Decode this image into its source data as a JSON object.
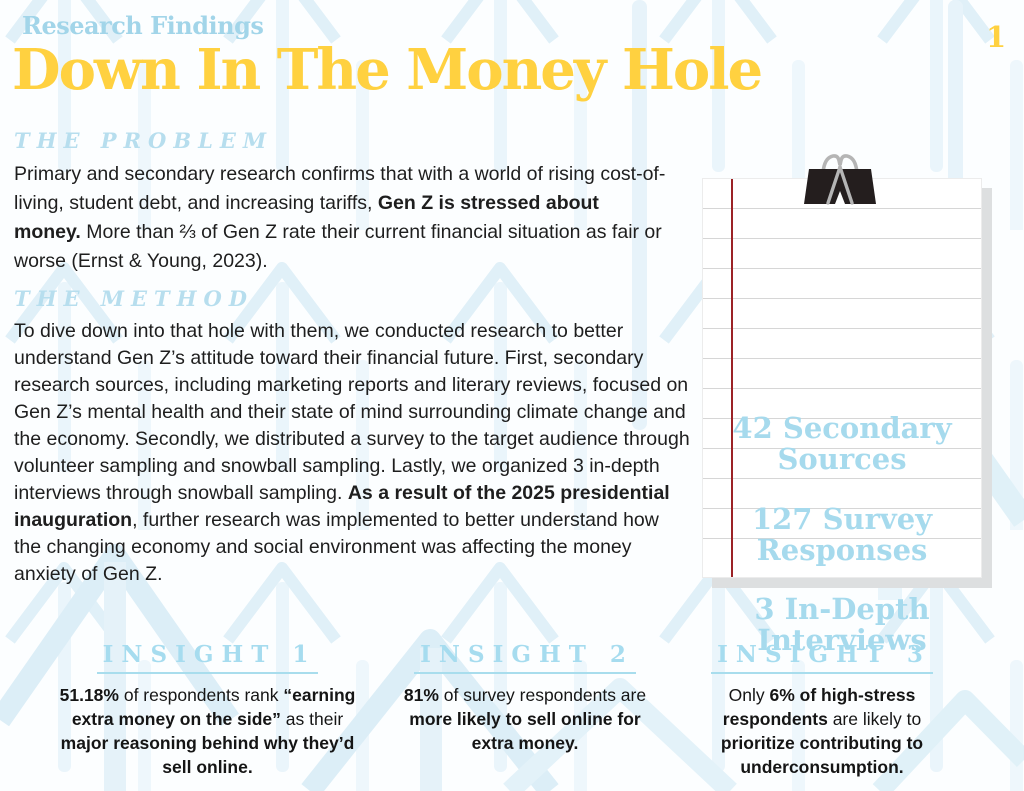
{
  "header": {
    "eyebrow": "Research Findings",
    "title": "Down In The Money Hole",
    "page_number": "1"
  },
  "colors": {
    "title_yellow": "#FFD140",
    "accent_light_blue": "#A6DBEE",
    "body_text": "#1E1E1E",
    "notepad_margin_red": "#9B2226",
    "notepad_rule_gray": "#D6D6D6",
    "background": "#FCFEFF"
  },
  "icons": {
    "binder_clip": "binder-clip-icon",
    "background_pattern": "upward-arrow-pattern"
  },
  "sections": {
    "problem": {
      "heading": "THE PROBLEM",
      "body": [
        {
          "t": "Primary and secondary research confirms that with a world of rising cost-of-living, student debt, and increasing tariffs, ",
          "b": false
        },
        {
          "t": "Gen Z is stressed about money.",
          "b": true
        },
        {
          "t": " More than ⅔ of Gen Z rate their current financial situation as fair or worse (Ernst & Young, 2023).",
          "b": false
        }
      ]
    },
    "method": {
      "heading": "THE METHOD",
      "body": [
        {
          "t": "To dive down into that hole with them, we conducted research to better understand Gen Z’s attitude toward their financial future. First, secondary research sources, including marketing reports and literary reviews, focused on Gen Z’s mental health and their state of mind surrounding climate change and the economy. Secondly, we distributed a survey to the target audience through volunteer sampling and snowball sampling. Lastly, we organized 3 in-depth interviews through snowball sampling. ",
          "b": false
        },
        {
          "t": "As a result of the 2025 presidential inauguration",
          "b": true
        },
        {
          "t": ", further research was implemented to better understand how the changing economy and social environment was affecting the money anxiety of Gen Z.",
          "b": false
        }
      ]
    }
  },
  "notepad": {
    "stats": [
      {
        "label": "42 Secondary\nSources"
      },
      {
        "label": "127 Survey\nResponses"
      },
      {
        "label": "3 In-Depth\nInterviews"
      }
    ]
  },
  "insights": [
    {
      "heading": "INSIGHT 1",
      "body": [
        {
          "t": "51.18%",
          "b": true
        },
        {
          "t": " of respondents rank ",
          "b": false
        },
        {
          "t": "“earning extra money on the side”",
          "b": true
        },
        {
          "t": " as their ",
          "b": false
        },
        {
          "t": "major reasoning behind why they’d sell online.",
          "b": true
        }
      ]
    },
    {
      "heading": "INSIGHT 2",
      "body": [
        {
          "t": "81%",
          "b": true
        },
        {
          "t": " of survey respondents are ",
          "b": false
        },
        {
          "t": "more likely to sell online for extra money.",
          "b": true
        }
      ]
    },
    {
      "heading": "INSIGHT 3",
      "body": [
        {
          "t": "Only ",
          "b": false
        },
        {
          "t": "6% of high-stress respondents",
          "b": true
        },
        {
          "t": " are likely to ",
          "b": false
        },
        {
          "t": "prioritize contributing to underconsumption.",
          "b": true
        }
      ]
    }
  ]
}
